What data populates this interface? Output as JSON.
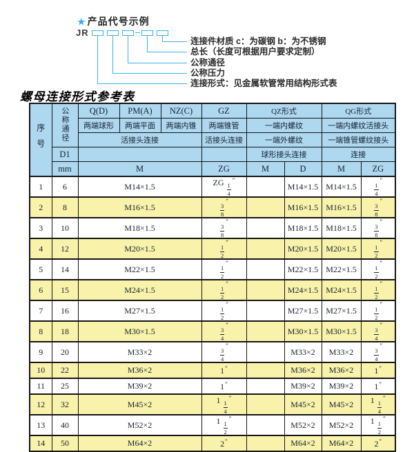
{
  "diagram": {
    "star": "★",
    "heading": "产品代号示例",
    "code": "JR",
    "labels": [
      "连接件材质  c：为碳钢  b：为不锈钢",
      "总长（长度可根据用户要求定制）",
      "公称通径",
      "公称压力",
      "连接形式：见金属软管常用结构形式表"
    ]
  },
  "table": {
    "title": "螺母连接形式参考表",
    "header": {
      "seq": "序号",
      "dn": "公称通径",
      "d1": "D1",
      "unit": "mm",
      "groups": [
        "Q(D)",
        "PM(A)",
        "NZ(C)",
        "GZ",
        "QZ形式",
        "QG形式"
      ],
      "styles": [
        "两端球形",
        "两端平面",
        "两端内锥",
        "两端锥管",
        "一端内螺纹",
        "一端内螺纹活接头"
      ],
      "row3": [
        "活接头连接",
        "活接头连接",
        "一端外螺纹",
        "一端锥管螺纹接头"
      ],
      "row4": [
        "球形接头连接",
        "连接"
      ],
      "subcols": [
        "M",
        "ZG",
        "M",
        "D",
        "M",
        "ZG"
      ]
    },
    "rows": [
      [
        "1",
        "6",
        "M14×1.5",
        "ZG 1/4″",
        "",
        "M14×1.5",
        "M14×1.5",
        "1/4″"
      ],
      [
        "2",
        "8",
        "M16×1.5",
        "3/8″",
        "",
        "M16×1.5",
        "M16×1.5",
        "3/8″"
      ],
      [
        "3",
        "10",
        "M18×1.5",
        "3/8″",
        "",
        "M18×1.5",
        "M18×1.5",
        "3/8″"
      ],
      [
        "4",
        "12",
        "M20×1.5",
        "1/2″",
        "",
        "M20×1.5",
        "M20×1.5",
        "1/2″"
      ],
      [
        "5",
        "14",
        "M22×1.5",
        "1/2″",
        "",
        "M22×1.5",
        "M22×1.5",
        "1/2″"
      ],
      [
        "6",
        "15",
        "M24×1.5",
        "1/2″",
        "",
        "M24×1.5",
        "M24×1.5",
        "1/2″"
      ],
      [
        "7",
        "16",
        "M27×1.5",
        "1/2″",
        "",
        "M27×1.5",
        "M27×1.5",
        "1/2″"
      ],
      [
        "8",
        "18",
        "M30×1.5",
        "3/4″",
        "",
        "M30×1.5",
        "M30×1.5",
        "3/4″"
      ],
      [
        "9",
        "20",
        "M33×2",
        "3/4″",
        "",
        "M33×2",
        "M33×2",
        "3/4″"
      ],
      [
        "10",
        "22",
        "M36×2",
        "1″",
        "",
        "M36×2",
        "M36×2",
        "1″"
      ],
      [
        "11",
        "25",
        "M39×2",
        "1″",
        "",
        "M39×2",
        "M39×2",
        "1″"
      ],
      [
        "12",
        "32",
        "M45×2",
        "1 1/4″",
        "",
        "M45×2",
        "M45×2",
        "1 1/4″"
      ],
      [
        "13",
        "40",
        "M52×2",
        "1 1/2″",
        "",
        "M52×2",
        "M52×2",
        "1 1/2″"
      ],
      [
        "14",
        "50",
        "M64×2",
        "2″",
        "",
        "M64×2",
        "M64×2",
        "2″"
      ]
    ]
  },
  "colors": {
    "accent_cyan": "#35b2e5",
    "header_blue": "#aed7f0",
    "row_yellow": "#f8f2ab",
    "border_black": "#141414"
  }
}
